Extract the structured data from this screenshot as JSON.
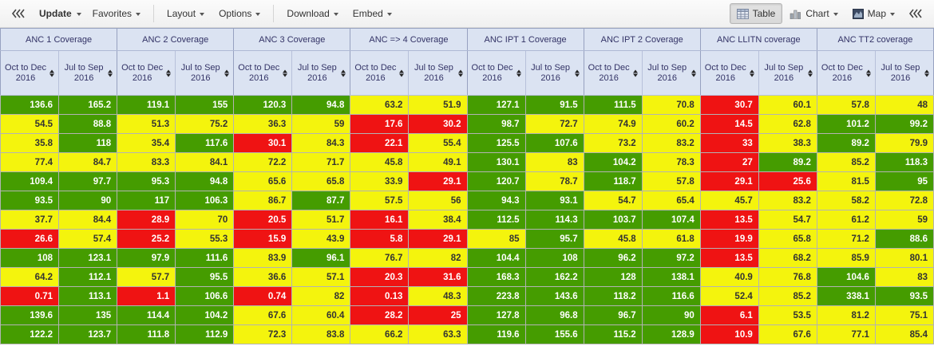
{
  "toolbar": {
    "update": "Update",
    "favorites": "Favorites",
    "layout": "Layout",
    "options": "Options",
    "download": "Download",
    "embed": "Embed",
    "table": "Table",
    "chart": "Chart",
    "map": "Map"
  },
  "theme": {
    "header_bg": "#dbe3f2",
    "header_text": "#333366",
    "cell_green": "#459c00",
    "cell_yellow": "#f4f40d",
    "cell_red": "#ef1313",
    "cell_text_light": "#ffffff",
    "cell_text_dark": "#333333"
  },
  "table": {
    "groups": [
      "ANC 1 Coverage",
      "ANC 2 Coverage",
      "ANC 3 Coverage",
      "ANC => 4 Coverage",
      "ANC IPT 1 Coverage",
      "ANC IPT 2 Coverage",
      "ANC LLITN coverage",
      "ANC TT2 coverage"
    ],
    "periods": [
      "Oct to Dec 2016",
      "Jul to Sep 2016"
    ],
    "color_legend": {
      "g": "green",
      "y": "yellow",
      "r": "red"
    },
    "rows": [
      [
        [
          "136.6",
          "g"
        ],
        [
          "165.2",
          "g"
        ],
        [
          "119.1",
          "g"
        ],
        [
          "155",
          "g"
        ],
        [
          "120.3",
          "g"
        ],
        [
          "94.8",
          "g"
        ],
        [
          "63.2",
          "y"
        ],
        [
          "51.9",
          "y"
        ],
        [
          "127.1",
          "g"
        ],
        [
          "91.5",
          "g"
        ],
        [
          "111.5",
          "g"
        ],
        [
          "70.8",
          "y"
        ],
        [
          "30.7",
          "r"
        ],
        [
          "60.1",
          "y"
        ],
        [
          "57.8",
          "y"
        ],
        [
          "48",
          "y"
        ]
      ],
      [
        [
          "54.5",
          "y"
        ],
        [
          "88.8",
          "g"
        ],
        [
          "51.3",
          "y"
        ],
        [
          "75.2",
          "y"
        ],
        [
          "36.3",
          "y"
        ],
        [
          "59",
          "y"
        ],
        [
          "17.6",
          "r"
        ],
        [
          "30.2",
          "r"
        ],
        [
          "98.7",
          "g"
        ],
        [
          "72.7",
          "y"
        ],
        [
          "74.9",
          "y"
        ],
        [
          "60.2",
          "y"
        ],
        [
          "14.5",
          "r"
        ],
        [
          "62.8",
          "y"
        ],
        [
          "101.2",
          "g"
        ],
        [
          "99.2",
          "g"
        ]
      ],
      [
        [
          "35.8",
          "y"
        ],
        [
          "118",
          "g"
        ],
        [
          "35.4",
          "y"
        ],
        [
          "117.6",
          "g"
        ],
        [
          "30.1",
          "r"
        ],
        [
          "84.3",
          "y"
        ],
        [
          "22.1",
          "r"
        ],
        [
          "55.4",
          "y"
        ],
        [
          "125.5",
          "g"
        ],
        [
          "107.6",
          "g"
        ],
        [
          "73.2",
          "y"
        ],
        [
          "83.2",
          "y"
        ],
        [
          "33",
          "r"
        ],
        [
          "38.3",
          "y"
        ],
        [
          "89.2",
          "g"
        ],
        [
          "79.9",
          "y"
        ]
      ],
      [
        [
          "77.4",
          "y"
        ],
        [
          "84.7",
          "y"
        ],
        [
          "83.3",
          "y"
        ],
        [
          "84.1",
          "y"
        ],
        [
          "72.2",
          "y"
        ],
        [
          "71.7",
          "y"
        ],
        [
          "45.8",
          "y"
        ],
        [
          "49.1",
          "y"
        ],
        [
          "130.1",
          "g"
        ],
        [
          "83",
          "y"
        ],
        [
          "104.2",
          "g"
        ],
        [
          "78.3",
          "y"
        ],
        [
          "27",
          "r"
        ],
        [
          "89.2",
          "g"
        ],
        [
          "85.2",
          "y"
        ],
        [
          "118.3",
          "g"
        ]
      ],
      [
        [
          "109.4",
          "g"
        ],
        [
          "97.7",
          "g"
        ],
        [
          "95.3",
          "g"
        ],
        [
          "94.8",
          "g"
        ],
        [
          "65.6",
          "y"
        ],
        [
          "65.8",
          "y"
        ],
        [
          "33.9",
          "y"
        ],
        [
          "29.1",
          "r"
        ],
        [
          "120.7",
          "g"
        ],
        [
          "78.7",
          "y"
        ],
        [
          "118.7",
          "g"
        ],
        [
          "57.8",
          "y"
        ],
        [
          "29.1",
          "r"
        ],
        [
          "25.6",
          "r"
        ],
        [
          "81.5",
          "y"
        ],
        [
          "95",
          "g"
        ]
      ],
      [
        [
          "93.5",
          "g"
        ],
        [
          "90",
          "g"
        ],
        [
          "117",
          "g"
        ],
        [
          "106.3",
          "g"
        ],
        [
          "86.7",
          "y"
        ],
        [
          "87.7",
          "g"
        ],
        [
          "57.5",
          "y"
        ],
        [
          "56",
          "y"
        ],
        [
          "94.3",
          "g"
        ],
        [
          "93.1",
          "g"
        ],
        [
          "54.7",
          "y"
        ],
        [
          "65.4",
          "y"
        ],
        [
          "45.7",
          "y"
        ],
        [
          "83.2",
          "y"
        ],
        [
          "58.2",
          "y"
        ],
        [
          "72.8",
          "y"
        ]
      ],
      [
        [
          "37.7",
          "y"
        ],
        [
          "84.4",
          "y"
        ],
        [
          "28.9",
          "r"
        ],
        [
          "70",
          "y"
        ],
        [
          "20.5",
          "r"
        ],
        [
          "51.7",
          "y"
        ],
        [
          "16.1",
          "r"
        ],
        [
          "38.4",
          "y"
        ],
        [
          "112.5",
          "g"
        ],
        [
          "114.3",
          "g"
        ],
        [
          "103.7",
          "g"
        ],
        [
          "107.4",
          "g"
        ],
        [
          "13.5",
          "r"
        ],
        [
          "54.7",
          "y"
        ],
        [
          "61.2",
          "y"
        ],
        [
          "59",
          "y"
        ]
      ],
      [
        [
          "26.6",
          "r"
        ],
        [
          "57.4",
          "y"
        ],
        [
          "25.2",
          "r"
        ],
        [
          "55.3",
          "y"
        ],
        [
          "15.9",
          "r"
        ],
        [
          "43.9",
          "y"
        ],
        [
          "5.8",
          "r"
        ],
        [
          "29.1",
          "r"
        ],
        [
          "85",
          "y"
        ],
        [
          "95.7",
          "g"
        ],
        [
          "45.8",
          "y"
        ],
        [
          "61.8",
          "y"
        ],
        [
          "19.9",
          "r"
        ],
        [
          "65.8",
          "y"
        ],
        [
          "71.2",
          "y"
        ],
        [
          "88.6",
          "g"
        ]
      ],
      [
        [
          "108",
          "g"
        ],
        [
          "123.1",
          "g"
        ],
        [
          "97.9",
          "g"
        ],
        [
          "111.6",
          "g"
        ],
        [
          "83.9",
          "y"
        ],
        [
          "96.1",
          "g"
        ],
        [
          "76.7",
          "y"
        ],
        [
          "82",
          "y"
        ],
        [
          "104.4",
          "g"
        ],
        [
          "108",
          "g"
        ],
        [
          "96.2",
          "g"
        ],
        [
          "97.2",
          "g"
        ],
        [
          "13.5",
          "r"
        ],
        [
          "68.2",
          "y"
        ],
        [
          "85.9",
          "y"
        ],
        [
          "80.1",
          "y"
        ]
      ],
      [
        [
          "64.2",
          "y"
        ],
        [
          "112.1",
          "g"
        ],
        [
          "57.7",
          "y"
        ],
        [
          "95.5",
          "g"
        ],
        [
          "36.6",
          "y"
        ],
        [
          "57.1",
          "y"
        ],
        [
          "20.3",
          "r"
        ],
        [
          "31.6",
          "r"
        ],
        [
          "168.3",
          "g"
        ],
        [
          "162.2",
          "g"
        ],
        [
          "128",
          "g"
        ],
        [
          "138.1",
          "g"
        ],
        [
          "40.9",
          "y"
        ],
        [
          "76.8",
          "y"
        ],
        [
          "104.6",
          "g"
        ],
        [
          "83",
          "y"
        ]
      ],
      [
        [
          "0.71",
          "r"
        ],
        [
          "113.1",
          "g"
        ],
        [
          "1.1",
          "r"
        ],
        [
          "106.6",
          "g"
        ],
        [
          "0.74",
          "r"
        ],
        [
          "82",
          "y"
        ],
        [
          "0.13",
          "r"
        ],
        [
          "48.3",
          "y"
        ],
        [
          "223.8",
          "g"
        ],
        [
          "143.6",
          "g"
        ],
        [
          "118.2",
          "g"
        ],
        [
          "116.6",
          "g"
        ],
        [
          "52.4",
          "y"
        ],
        [
          "85.2",
          "y"
        ],
        [
          "338.1",
          "g"
        ],
        [
          "93.5",
          "g"
        ]
      ],
      [
        [
          "139.6",
          "g"
        ],
        [
          "135",
          "g"
        ],
        [
          "114.4",
          "g"
        ],
        [
          "104.2",
          "g"
        ],
        [
          "67.6",
          "y"
        ],
        [
          "60.4",
          "y"
        ],
        [
          "28.2",
          "r"
        ],
        [
          "25",
          "r"
        ],
        [
          "127.8",
          "g"
        ],
        [
          "96.8",
          "g"
        ],
        [
          "96.7",
          "g"
        ],
        [
          "90",
          "g"
        ],
        [
          "6.1",
          "r"
        ],
        [
          "53.5",
          "y"
        ],
        [
          "81.2",
          "y"
        ],
        [
          "75.1",
          "y"
        ]
      ],
      [
        [
          "122.2",
          "g"
        ],
        [
          "123.7",
          "g"
        ],
        [
          "111.8",
          "g"
        ],
        [
          "112.9",
          "g"
        ],
        [
          "72.3",
          "y"
        ],
        [
          "83.8",
          "y"
        ],
        [
          "66.2",
          "y"
        ],
        [
          "63.3",
          "y"
        ],
        [
          "119.6",
          "g"
        ],
        [
          "155.6",
          "g"
        ],
        [
          "115.2",
          "g"
        ],
        [
          "128.9",
          "g"
        ],
        [
          "10.9",
          "r"
        ],
        [
          "67.6",
          "y"
        ],
        [
          "77.1",
          "y"
        ],
        [
          "85.4",
          "y"
        ]
      ]
    ]
  }
}
